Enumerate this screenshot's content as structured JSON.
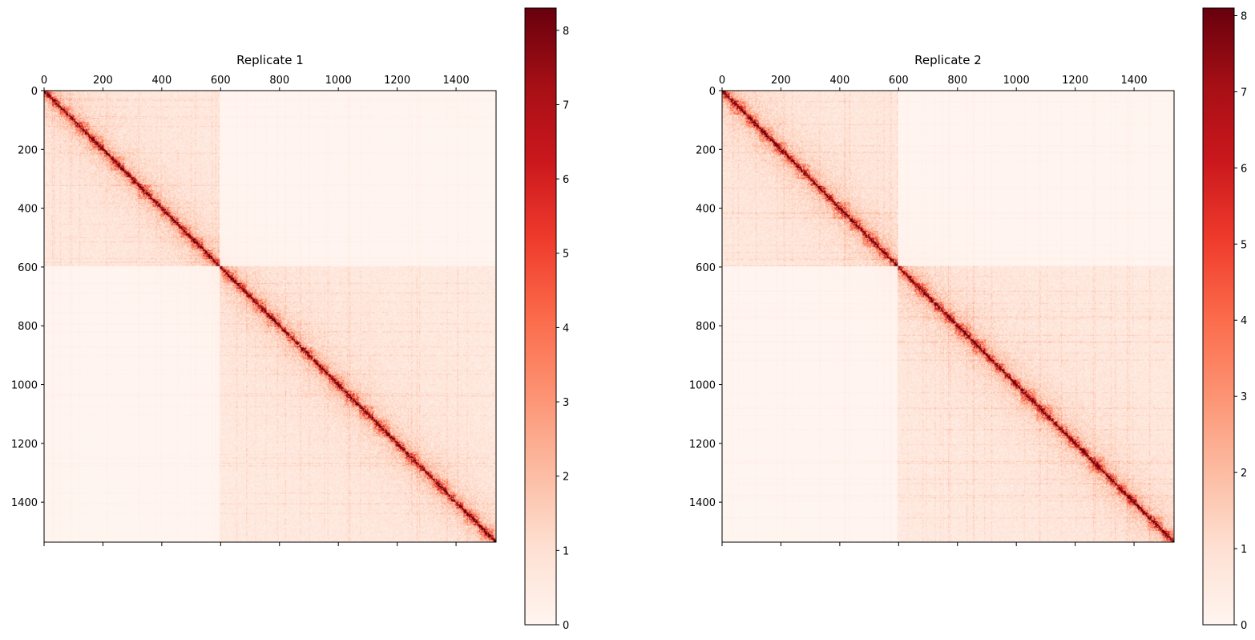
{
  "chart_data": [
    {
      "type": "heatmap",
      "title": "Replicate 1",
      "matrix_size": 1536,
      "x_ticks": [
        0,
        200,
        400,
        600,
        800,
        1000,
        1200,
        1400
      ],
      "y_ticks": [
        0,
        200,
        400,
        600,
        800,
        1000,
        1200,
        1400
      ],
      "x_tick_labels": [
        "0",
        "200",
        "400",
        "600",
        "800",
        "1000",
        "1200",
        "1400"
      ],
      "y_tick_labels": [
        "0",
        "200",
        "400",
        "600",
        "800",
        "1000",
        "1200",
        "1400"
      ],
      "colormap": "Reds",
      "colorbar_range": [
        0,
        8.3
      ],
      "colorbar_ticks": [
        0,
        1,
        2,
        3,
        4,
        5,
        6,
        7,
        8
      ],
      "colorbar_tick_labels": [
        "0",
        "1",
        "2",
        "3",
        "4",
        "5",
        "6",
        "7",
        "8"
      ],
      "chromosome_boundaries": [
        595
      ]
    },
    {
      "type": "heatmap",
      "title": "Replicate 2",
      "matrix_size": 1536,
      "x_ticks": [
        0,
        200,
        400,
        600,
        800,
        1000,
        1200,
        1400
      ],
      "y_ticks": [
        0,
        200,
        400,
        600,
        800,
        1000,
        1200,
        1400
      ],
      "x_tick_labels": [
        "0",
        "200",
        "400",
        "600",
        "800",
        "1000",
        "1200",
        "1400"
      ],
      "y_tick_labels": [
        "0",
        "200",
        "400",
        "600",
        "800",
        "1000",
        "1200",
        "1400"
      ],
      "colormap": "Reds",
      "colorbar_range": [
        0,
        8.1
      ],
      "colorbar_ticks": [
        0,
        1,
        2,
        3,
        4,
        5,
        6,
        7,
        8
      ],
      "colorbar_tick_labels": [
        "0",
        "1",
        "2",
        "3",
        "4",
        "5",
        "6",
        "7",
        "8"
      ],
      "chromosome_boundaries": [
        595
      ]
    }
  ]
}
